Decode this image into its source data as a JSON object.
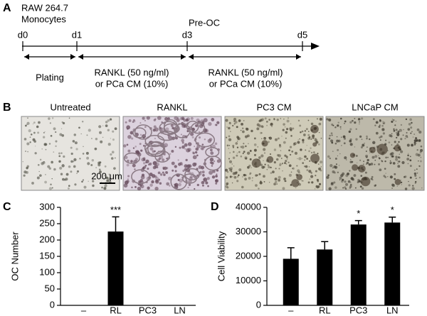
{
  "panel_a": {
    "label": "A",
    "cell_line": "RAW 264.7",
    "cell_type": "Monocytes",
    "stage": "Pre-OC",
    "days": [
      "d0",
      "d1",
      "d3",
      "d5"
    ],
    "periods": [
      {
        "lines": [
          "Plating"
        ]
      },
      {
        "lines": [
          "RANKL (50 ng/ml)",
          "or PCa CM (10%)"
        ]
      },
      {
        "lines": [
          "RANKL (50 ng/ml)",
          "or PCa CM (10%)"
        ]
      }
    ]
  },
  "panel_b": {
    "label": "B",
    "images": [
      {
        "title": "Untreated"
      },
      {
        "title": "RANKL"
      },
      {
        "title": "PC3 CM"
      },
      {
        "title": "LNCaP CM"
      }
    ],
    "scale_bar": "200 μm"
  },
  "chart_data": [
    {
      "type": "bar",
      "panel_label": "C",
      "y_label": "OC Number",
      "categories": [
        "–",
        "RL",
        "PC3",
        "LN"
      ],
      "values": [
        0,
        226,
        0,
        0
      ],
      "errors": [
        0,
        45,
        0,
        0
      ],
      "significance": [
        null,
        "***",
        null,
        null
      ],
      "color": "#000000",
      "ylim": [
        0,
        300
      ],
      "yticks": [
        0,
        50,
        100,
        150,
        200,
        250,
        300
      ]
    },
    {
      "type": "bar",
      "panel_label": "D",
      "y_label": "Cell Viability",
      "categories": [
        "–",
        "RL",
        "PC3",
        "LN"
      ],
      "values": [
        19000,
        22800,
        33000,
        33800
      ],
      "errors": [
        4500,
        3200,
        1600,
        2200
      ],
      "significance": [
        null,
        null,
        "*",
        "*"
      ],
      "color": "#000000",
      "ylim": [
        0,
        40000
      ],
      "yticks": [
        0,
        10000,
        20000,
        30000,
        40000
      ]
    }
  ]
}
